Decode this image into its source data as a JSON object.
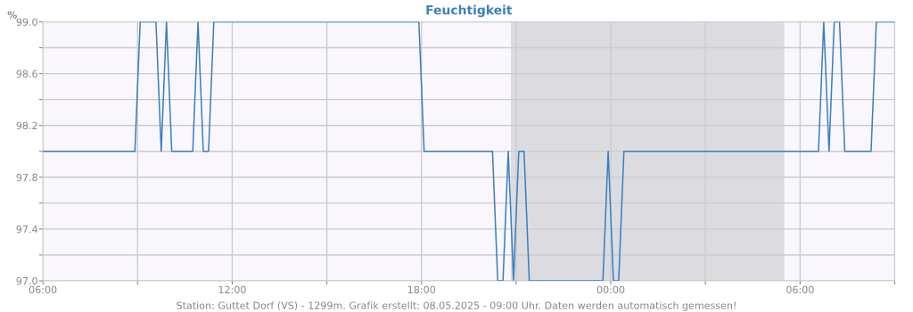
{
  "chart_data": {
    "type": "line",
    "title": "Feuchtigkeit",
    "ylabel": "%",
    "x": [
      "2025-05-07T06:00",
      "2025-05-07T08:55",
      "2025-05-07T09:05",
      "2025-05-07T09:35",
      "2025-05-07T09:45",
      "2025-05-07T09:55",
      "2025-05-07T10:05",
      "2025-05-07T10:45",
      "2025-05-07T10:55",
      "2025-05-07T11:05",
      "2025-05-07T11:15",
      "2025-05-07T11:25",
      "2025-05-07T17:55",
      "2025-05-07T18:05",
      "2025-05-07T20:15",
      "2025-05-07T20:25",
      "2025-05-07T20:35",
      "2025-05-07T20:45",
      "2025-05-07T20:55",
      "2025-05-07T21:05",
      "2025-05-07T21:15",
      "2025-05-07T21:25",
      "2025-05-07T23:45",
      "2025-05-07T23:55",
      "2025-05-08T00:05",
      "2025-05-08T00:15",
      "2025-05-08T00:25",
      "2025-05-08T06:35",
      "2025-05-08T06:45",
      "2025-05-08T06:55",
      "2025-05-08T07:05",
      "2025-05-08T07:15",
      "2025-05-08T07:25",
      "2025-05-08T08:15",
      "2025-05-08T08:25",
      "2025-05-08T09:00"
    ],
    "series": [
      {
        "color": "#3a7fc0",
        "values": [
          98.0,
          98.0,
          99.0,
          99.0,
          98.0,
          99.0,
          98.0,
          98.0,
          99.0,
          98.0,
          98.0,
          99.0,
          99.0,
          98.0,
          98.0,
          97.0,
          97.0,
          98.0,
          97.0,
          98.0,
          98.0,
          97.0,
          97.0,
          98.0,
          97.0,
          97.0,
          98.0,
          98.0,
          99.0,
          98.0,
          99.0,
          99.0,
          98.0,
          98.0,
          99.0,
          99.0
        ]
      }
    ],
    "xlim": [
      "2025-05-07T06:00",
      "2025-05-08T09:00"
    ],
    "xticks": [
      {
        "value": "2025-05-07T06:00",
        "label": "06:00"
      },
      {
        "value": "2025-05-07T09:00",
        "label": null
      },
      {
        "value": "2025-05-07T12:00",
        "label": "12:00"
      },
      {
        "value": "2025-05-07T15:00",
        "label": null
      },
      {
        "value": "2025-05-07T18:00",
        "label": "18:00"
      },
      {
        "value": "2025-05-07T21:00",
        "label": null
      },
      {
        "value": "2025-05-08T00:00",
        "label": "00:00"
      },
      {
        "value": "2025-05-08T03:00",
        "label": null
      },
      {
        "value": "2025-05-08T06:00",
        "label": "06:00"
      },
      {
        "value": "2025-05-08T09:00",
        "label": null
      }
    ],
    "ylim": [
      97.0,
      99.0
    ],
    "yticks": [
      {
        "value": 97.0,
        "label": "97.0"
      },
      {
        "value": 97.2,
        "label": null
      },
      {
        "value": 97.4,
        "label": "97.4"
      },
      {
        "value": 97.6,
        "label": null
      },
      {
        "value": 97.8,
        "label": "97.8"
      },
      {
        "value": 98.0,
        "label": null
      },
      {
        "value": 98.2,
        "label": "98.2"
      },
      {
        "value": 98.4,
        "label": null
      },
      {
        "value": 98.6,
        "label": "98.6"
      },
      {
        "value": 98.8,
        "label": null
      },
      {
        "value": 99.0,
        "label": "99.0"
      }
    ],
    "bands": [
      {
        "axis": "x",
        "from": "2025-05-07T20:50",
        "to": "2025-05-08T05:30",
        "color": "#dcdce0"
      }
    ],
    "grid": true,
    "legend": false,
    "marker": "none",
    "line_style": "solid",
    "annotations": [
      "Station: Guttet Dorf (VS) - 1299m. Grafik erstellt: 08.05.2025 - 09:00 Uhr. Daten werden automatisch gemessen!"
    ]
  }
}
